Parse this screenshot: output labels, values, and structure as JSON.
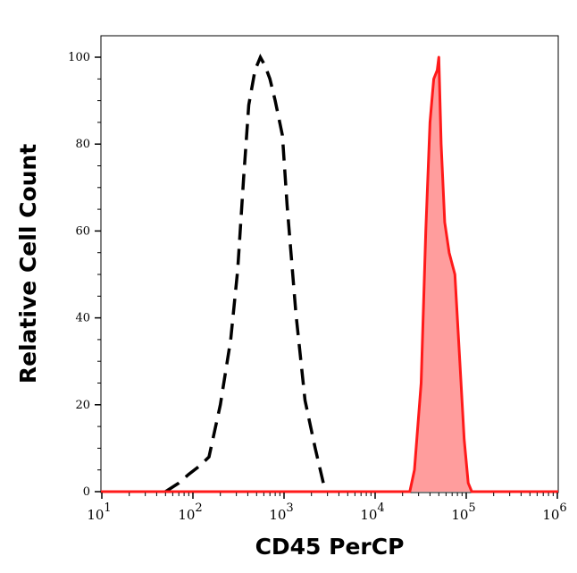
{
  "chart_data": {
    "type": "area",
    "title": "",
    "xlabel": "CD45 PerCP",
    "ylabel": "Relative Cell Count",
    "x_scale": "log",
    "xlim": [
      7,
      1200000
    ],
    "ylim": [
      0,
      105
    ],
    "x_ticks": [
      {
        "value": 10,
        "base": "10",
        "exp": "1"
      },
      {
        "value": 100,
        "base": "10",
        "exp": "2"
      },
      {
        "value": 1000,
        "base": "10",
        "exp": "3"
      },
      {
        "value": 10000,
        "base": "10",
        "exp": "4"
      },
      {
        "value": 100000,
        "base": "10",
        "exp": "5"
      },
      {
        "value": 1000000,
        "base": "10",
        "exp": "6"
      }
    ],
    "y_ticks": [
      {
        "value": 0,
        "label": "0"
      },
      {
        "value": 20,
        "label": "20"
      },
      {
        "value": 40,
        "label": "40"
      },
      {
        "value": 60,
        "label": "60"
      },
      {
        "value": 80,
        "label": "80"
      },
      {
        "value": 100,
        "label": "100"
      }
    ],
    "grid": false,
    "series": [
      {
        "style": "dashed-line",
        "color": "#000000",
        "x": [
          50,
          70,
          90,
          120,
          150,
          200,
          260,
          310,
          360,
          410,
          480,
          550,
          620,
          700,
          800,
          960,
          1080,
          1350,
          1700,
          2200,
          2700,
          3000
        ],
        "y": [
          0,
          2,
          4,
          6,
          8,
          20,
          35,
          51,
          72,
          89,
          97,
          100,
          98,
          95,
          90,
          82,
          66,
          41,
          21,
          10,
          2,
          0
        ]
      },
      {
        "style": "filled",
        "color": "#ff1a1a",
        "fill": "#ff9d9d",
        "x": [
          7,
          24000,
          27000,
          32000,
          36000,
          40000,
          44000,
          48000,
          50000,
          53000,
          58000,
          65000,
          75000,
          85000,
          95000,
          105000,
          115000,
          1200000
        ],
        "y": [
          0,
          0,
          5,
          25,
          60,
          85,
          95,
          97,
          100,
          80,
          62,
          55,
          50,
          30,
          12,
          2,
          0,
          0
        ]
      }
    ]
  }
}
